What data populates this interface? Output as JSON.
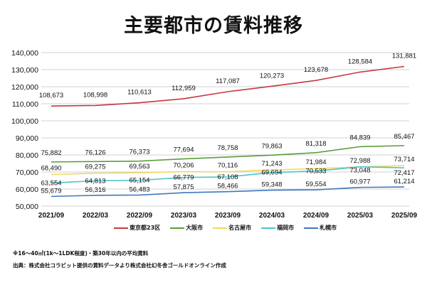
{
  "chart_data": {
    "type": "line",
    "title": "主要都市の賃料推移",
    "categories": [
      "2021/09",
      "2022/03",
      "2022/09",
      "2023/03",
      "2023/09",
      "2024/03",
      "2024/09",
      "2025/03",
      "2025/09"
    ],
    "ylim": [
      50000,
      140000
    ],
    "yticks": [
      "50,000",
      "60,000",
      "70,000",
      "80,000",
      "90,000",
      "100,000",
      "110,000",
      "120,000",
      "130,000",
      "140,000"
    ],
    "grid": true,
    "legend": "bottom",
    "series": [
      {
        "name": "東京都23区",
        "color": "#c8373b",
        "values": [
          108673,
          108998,
          110613,
          112959,
          117087,
          120273,
          123678,
          128584,
          131881
        ]
      },
      {
        "name": "大阪市",
        "color": "#5a9e3a",
        "values": [
          75882,
          76126,
          76373,
          77694,
          78758,
          79863,
          81318,
          84839,
          85467
        ]
      },
      {
        "name": "名古屋市",
        "color": "#f0d860",
        "values": [
          68490,
          69275,
          69563,
          70206,
          70116,
          71243,
          71984,
          72988,
          73714
        ]
      },
      {
        "name": "福岡市",
        "color": "#4cc4cc",
        "values": [
          63554,
          64813,
          65154,
          66779,
          67108,
          69694,
          70533,
          73048,
          72417
        ]
      },
      {
        "name": "札幌市",
        "color": "#3f78c0",
        "values": [
          55679,
          56316,
          56483,
          57875,
          58466,
          59348,
          59554,
          60977,
          61214
        ]
      }
    ]
  },
  "notes": {
    "note1": "※16～40㎡(1k～1LDK程度)・築30年以内の平均賃料",
    "source": "出典：株式会社コラビット提供の賃料データより株式会社幻冬舎ゴールドオンライン作成"
  }
}
